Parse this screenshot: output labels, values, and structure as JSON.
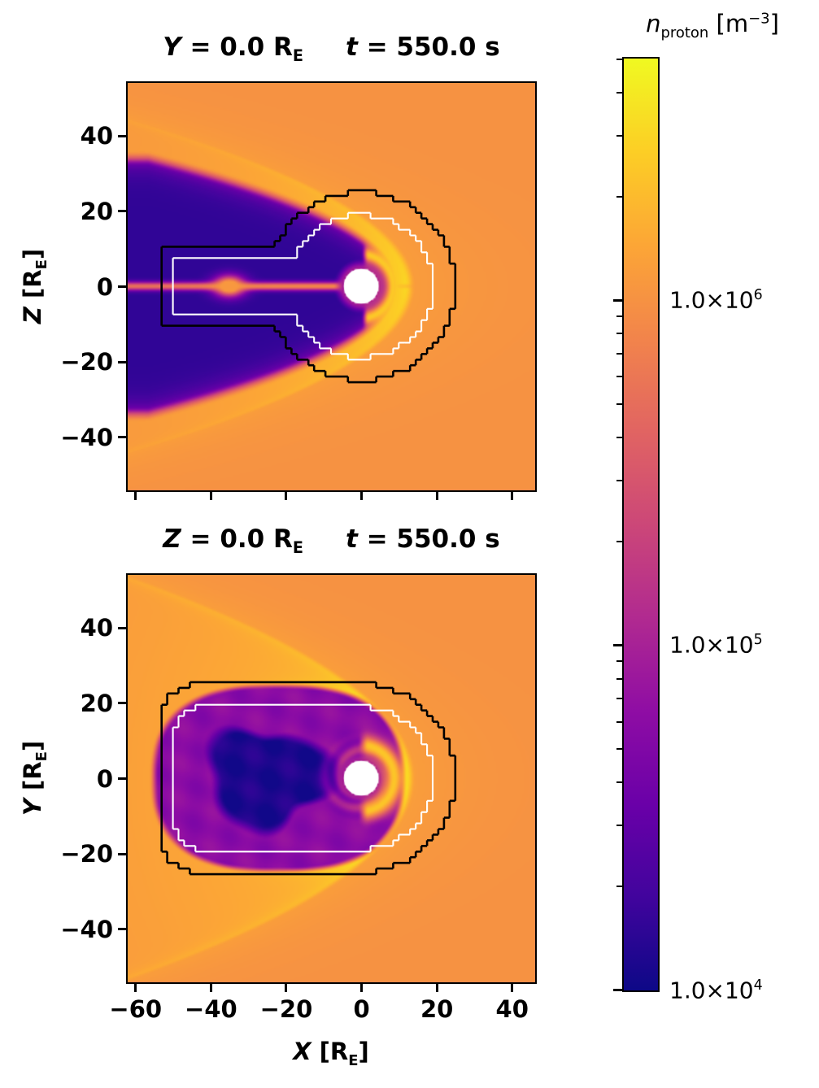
{
  "figure": {
    "background": "#ffffff",
    "frame_color": "#000000"
  },
  "chart_data": {
    "type": "heatmap",
    "description": "Proton number density slices from a magnetosphere simulation at t = 550.0 s. Top panel: meridional plane Y = 0 (X-Z). Bottom panel: equatorial plane Z = 0 (X-Y). Logarithmic plasma colormap from 1e4 to ~5e6 m^-3. Black and white stepped contours mark nested refinement-region boundaries; a white disk of radius ~4.6 RE marks the inner boundary at Earth. Visible physical features: orange solar wind, bright yellow bow shock and magnetosheath, dark purple magnetotail lobes, thin orange plasma sheet with a plasmoid near X = -35 RE in the meridional plane, and a wavy dark tail plasma cavity in the equatorial plane.",
    "colormap": "plasma",
    "colormap_stops": [
      [
        0,
        "#0d0887"
      ],
      [
        0.1,
        "#41049d"
      ],
      [
        0.2,
        "#6a00a8"
      ],
      [
        0.3,
        "#8f0da4"
      ],
      [
        0.4,
        "#b12a90"
      ],
      [
        0.5,
        "#cc4778"
      ],
      [
        0.6,
        "#e16462"
      ],
      [
        0.7,
        "#f2844b"
      ],
      [
        0.8,
        "#fca636"
      ],
      [
        0.9,
        "#fcce25"
      ],
      [
        1,
        "#f0f921"
      ]
    ],
    "log_min_exp": 4,
    "log_max_exp": 6.7,
    "panels": [
      {
        "id": "xz",
        "title": {
          "slice_var": "Y",
          "slice_rest": " = 0.0 R",
          "slice_sub": "E",
          "time_var": "t",
          "time_rest": " = 550.0 s"
        },
        "ylabel": {
          "var": "Z",
          "pre": " [R",
          "sub": "E",
          "post": "]"
        },
        "xlim": [
          -62,
          46
        ],
        "ylim": [
          -54,
          54
        ],
        "xticks": [
          -60,
          -40,
          -20,
          0,
          20,
          40
        ],
        "yticks": [
          40,
          20,
          0,
          -20,
          -40
        ],
        "show_xtick_labels": false,
        "inner_boundary_radius": 4.6,
        "contours": {
          "black": {
            "type": "circle-plus-slab",
            "circle_r": 25,
            "slab_halfwidth": 10,
            "slab_xmin": -53.5
          },
          "white": {
            "type": "circle-plus-slab",
            "circle_r": 19,
            "slab_halfwidth": 7,
            "slab_xmin": -50
          }
        },
        "features": {
          "ambient_log10n": 6.0,
          "sheath_log10n": 6.38,
          "lobe_log10n": 4.2,
          "plasma_sheet_log10n": 5.95,
          "bow_shock_nose_x": 13,
          "bow_shock_flare": 26,
          "magnetopause_nose_x": 9,
          "plasmoid_x": -35
        }
      },
      {
        "id": "xy",
        "title": {
          "slice_var": "Z",
          "slice_rest": " = 0.0 R",
          "slice_sub": "E",
          "time_var": "t",
          "time_rest": " = 550.0 s"
        },
        "ylabel": {
          "var": "Y",
          "pre": " [R",
          "sub": "E",
          "post": "]"
        },
        "xlabel": {
          "var": "X",
          "pre": " [R",
          "sub": "E",
          "post": "]"
        },
        "xlim": [
          -62,
          46
        ],
        "ylim": [
          -54,
          54
        ],
        "xticks": [
          -60,
          -40,
          -20,
          0,
          20,
          40
        ],
        "yticks": [
          40,
          20,
          0,
          -20,
          -40
        ],
        "show_xtick_labels": true,
        "inner_boundary_radius": 4.6,
        "contours": {
          "black": {
            "type": "rounded-slab",
            "halfwidth": 25,
            "xmin": -53.5,
            "right_cap_r": 25,
            "corner_r": 10
          },
          "white": {
            "type": "rounded-slab",
            "halfwidth": 19,
            "xmin": -49.5,
            "right_cap_r": 19,
            "corner_r": 8
          }
        },
        "features": {
          "ambient_log10n": 6.0,
          "sheath_log10n": 6.45,
          "tail_core_log10n": 4.1,
          "bow_shock_nose_x": 13,
          "bow_shock_flare": 38,
          "tail_core_center_x": -25
        }
      }
    ],
    "colorbar": {
      "title": {
        "var": "n",
        "sub": "proton",
        "pre": " [m",
        "sup": "−3",
        "post": "]"
      },
      "scale": "log",
      "ticks": [
        {
          "value": 1000000,
          "base": "1.0×10",
          "exp": "6"
        },
        {
          "value": 100000,
          "base": "1.0×10",
          "exp": "5"
        },
        {
          "value": 10000,
          "base": "1.0×10",
          "exp": "4"
        }
      ]
    }
  }
}
